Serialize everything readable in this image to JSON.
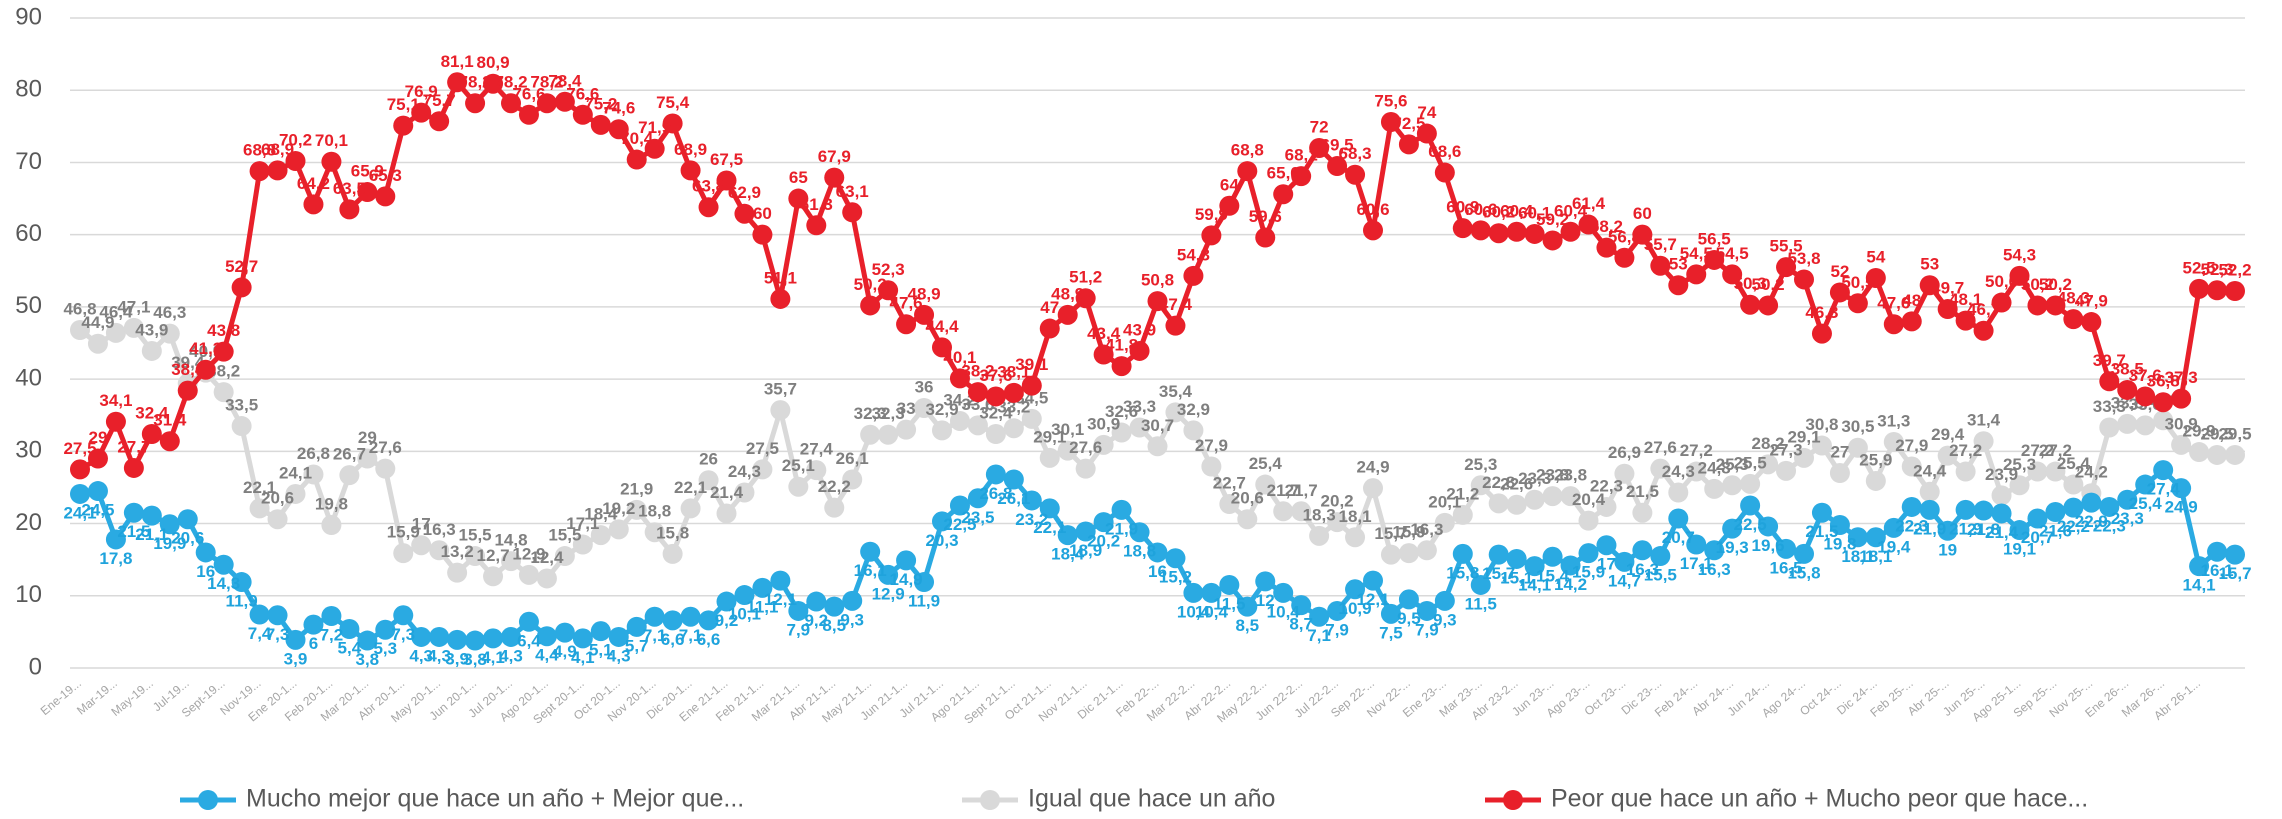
{
  "chart_data": {
    "type": "line",
    "categories": [
      "Ene-19...",
      null,
      "Mar-19...",
      null,
      "May-19...",
      null,
      "Jul-19...",
      null,
      "Sept-19...",
      null,
      "Nov-19...",
      null,
      "Ene 20-1...",
      null,
      "Feb 20-1...",
      null,
      "Mar 20-1...",
      null,
      "Abr 20-1...",
      null,
      "May 20-1...",
      null,
      "Jun 20-1...",
      null,
      "Jul 20-1...",
      null,
      "Ago 20-1...",
      null,
      "Sept 20-1...",
      null,
      "Oct 20-1...",
      null,
      "Nov 20-1...",
      null,
      "Dic 20-1...",
      null,
      "Ene 21-1...",
      null,
      "Feb 21-1...",
      null,
      "Mar 21-1...",
      null,
      "Abr 21-1...",
      null,
      "May 21-1...",
      null,
      "Jun 21-1...",
      null,
      "Jul 21-1...",
      null,
      "Ago 21-1...",
      null,
      "Sept 21-1...",
      null,
      "Oct 21-1...",
      null,
      "Nov 21-1...",
      null,
      "Dic 21-1...",
      null,
      "Feb 22-...",
      null,
      "Mar 22-2...",
      null,
      "Abr 22-2...",
      null,
      "May 22-2...",
      null,
      "Jun 22-2...",
      null,
      "Jul 22-2...",
      null,
      "Sep 22-...",
      null,
      "Nov 22-...",
      null,
      "Ene 23-...",
      null,
      "Mar 23-...",
      null,
      "Abr 23-2...",
      null,
      "Jun 23-...",
      null,
      "Ago 23-...",
      null,
      "Oct 23-...",
      null,
      "Dic 23-...",
      null,
      "Feb 24-...",
      null,
      "Abr 24-...",
      null,
      "Jun 24-...",
      null,
      "Ago 24-...",
      null,
      "Oct 24-...",
      null,
      "Dic 24-...",
      null,
      "Feb 25-...",
      null,
      "Abr 25-...",
      null,
      "Jun 25-...",
      null,
      "Ago 25-1...",
      null,
      "Sep 25-...",
      null,
      "Nov 25-...",
      null,
      "Ene 26-...",
      null,
      "Mar 26-...",
      null,
      "Abr 26-1...",
      null,
      null
    ],
    "series": [
      {
        "name": "Mucho mejor que hace un año + Mejor que...",
        "color": "#2aaae2",
        "label_color": "#1fa3dc",
        "values": [
          24.1,
          24.5,
          17.8,
          21.5,
          21.1,
          19.9,
          20.6,
          16,
          14.3,
          11.9,
          7.4,
          7.3,
          3.9,
          6,
          7.2,
          5.4,
          3.8,
          5.3,
          7.3,
          4.3,
          4.3,
          3.9,
          3.8,
          4.1,
          4.3,
          6.4,
          4.4,
          4.9,
          4.1,
          5.1,
          4.3,
          5.7,
          7.1,
          6.6,
          7.1,
          6.6,
          9.2,
          10.1,
          11.1,
          12.1,
          7.9,
          9.2,
          8.5,
          9.3,
          16.1,
          12.9,
          14.9,
          11.9,
          20.3,
          22.5,
          23.5,
          26.8,
          26.1,
          23.2,
          22.1,
          18.4,
          18.9,
          20.2,
          21.9,
          18.8,
          16,
          15.2,
          10.4,
          10.4,
          11.5,
          8.5,
          12,
          10.4,
          8.7,
          7.1,
          7.9,
          10.9,
          12.1,
          7.5,
          9.5,
          7.9,
          9.3,
          15.8,
          11.5,
          15.7,
          15.1,
          14.1,
          15.4,
          14.2,
          15.9,
          17,
          14.7,
          16.3,
          15.5,
          20.7,
          17.1,
          16.3,
          19.3,
          22.5,
          19.6,
          16.5,
          15.8,
          21.5,
          19.8,
          18.1,
          18.1,
          19.4,
          22.3,
          21.9,
          19,
          21.9,
          21.8,
          21.4,
          19.1,
          20.7,
          21.6,
          22.2,
          22.9,
          22.3,
          23.3,
          25.4,
          27.4,
          24.9,
          14.1,
          16.1,
          15.7
        ],
        "value_labels": [
          "24,1",
          "24,5",
          "17,8",
          "21,5",
          "21,1",
          "19,9",
          "20,6",
          "16",
          "14,3",
          "11,9",
          "7,4",
          "7,3",
          "3,9",
          "6",
          "7,2",
          "5,4",
          "3,8",
          "5,3",
          "7,3",
          "4,3",
          "4,3",
          "3,9",
          "3,8",
          "4,1",
          "4,3",
          "6,4",
          "4,4",
          "4,9",
          "4,1",
          "5,1",
          "4,3",
          "5,7",
          "7,1",
          "6,6",
          "7,1",
          "6,6",
          "9,2",
          "10,1",
          "11,1",
          "12,1",
          "7,9",
          "9,2",
          "8,5",
          "9,3",
          "16,1",
          "12,9",
          "14,9",
          "11,9",
          "20,3",
          "22,5",
          "23,5",
          "26,8",
          "26,1",
          "23,2",
          "22,1",
          "18,4",
          "18,9",
          "20,2",
          "21,9",
          "18,8",
          "16",
          "15,2",
          "10,4",
          "10,4",
          "11,5",
          "8,5",
          "12",
          "10,4",
          "8,7",
          "7,1",
          "7,9",
          "10,9",
          "12,1",
          "7,5",
          "9,5",
          "7,9",
          "9,3",
          "15,8",
          "11,5",
          "15,7",
          "15,1",
          "14,1",
          "15,4",
          "14,2",
          "15,9",
          "17",
          "14,7",
          "16,3",
          "15,5",
          "20,7",
          "17,1",
          "16,3",
          "19,3",
          "22,5",
          "19,6",
          "16,5",
          "15,8",
          "21,5",
          "19,8",
          "18,1",
          "18,1",
          "19,4",
          "22,3",
          "21,9",
          "19",
          "21,9",
          "21,8",
          "21,4",
          "19,1",
          "20,7",
          "21,6",
          "22,2",
          "22,9",
          "22,3",
          "23,3",
          "25,4",
          "27,4",
          "24,9",
          "14,1",
          "16,1",
          "15,7"
        ]
      },
      {
        "name": "Igual que hace un año",
        "color": "#d9d9d9",
        "label_color": "#7f7f7f",
        "values": [
          46.8,
          44.9,
          46.4,
          47.1,
          43.9,
          46.3,
          39.4,
          40.9,
          38.2,
          33.5,
          22.1,
          20.6,
          24.1,
          26.8,
          19.8,
          26.7,
          29,
          27.6,
          15.9,
          17,
          16.3,
          13.2,
          15.5,
          12.7,
          14.8,
          12.9,
          12.4,
          15.5,
          17.1,
          18.4,
          19.2,
          21.9,
          18.8,
          15.8,
          22.1,
          26,
          21.4,
          24.3,
          27.5,
          35.7,
          25.1,
          27.4,
          22.2,
          26.1,
          32.3,
          32.3,
          33,
          36,
          32.9,
          34.2,
          33.6,
          32.4,
          33.2,
          34.5,
          29.1,
          30.1,
          27.6,
          30.9,
          32.6,
          33.3,
          30.7,
          35.4,
          32.9,
          27.9,
          22.7,
          20.6,
          25.4,
          21.7,
          21.7,
          18.3,
          20.2,
          18.1,
          24.9,
          15.7,
          15.9,
          16.3,
          20.1,
          21.2,
          25.3,
          22.8,
          22.6,
          23.3,
          23.8,
          23.8,
          20.4,
          22.3,
          26.9,
          21.5,
          27.6,
          24.3,
          27.2,
          24.8,
          25.3,
          25.5,
          28.2,
          27.3,
          29.1,
          30.8,
          27,
          30.5,
          25.9,
          31.3,
          27.9,
          24.4,
          29.4,
          27.2,
          31.4,
          23.9,
          25.3,
          27.2,
          27.2,
          25.4,
          24.2,
          33.3,
          33.8,
          33.6,
          34.3,
          30.9,
          29.9,
          29.5,
          29.5
        ],
        "value_labels": [
          "46,8",
          "44,9",
          "46,4",
          "47,1",
          "43,9",
          "46,3",
          "39,4",
          "40,9",
          "38,2",
          "33,5",
          "22,1",
          "20,6",
          "24,1",
          "26,8",
          "19,8",
          "26,7",
          "29",
          "27,6",
          "15,9",
          "17",
          "16,3",
          "13,2",
          "15,5",
          "12,7",
          "14,8",
          "12,9",
          "12,4",
          "15,5",
          "17,1",
          "18,4",
          "19,2",
          "21,9",
          "18,8",
          "15,8",
          "22,1",
          "26",
          "21,4",
          "24,3",
          "27,5",
          "35,7",
          "25,1",
          "27,4",
          "22,2",
          "26,1",
          "32,3",
          "32,3",
          "33",
          "36",
          "32,9",
          "34,2",
          "33,6",
          "32,4",
          "33,2",
          "34,5",
          "29,1",
          "30,1",
          "27,6",
          "30,9",
          "32,6",
          "33,3",
          "30,7",
          "35,4",
          "32,9",
          "27,9",
          "22,7",
          "20,6",
          "25,4",
          "21,7",
          "21,7",
          "18,3",
          "20,2",
          "18,1",
          "24,9",
          "15,7",
          "15,9",
          "16,3",
          "20,1",
          "21,2",
          "25,3",
          "22,8",
          "22,6",
          "23,3",
          "23,8",
          "23,8",
          "20,4",
          "22,3",
          "26,9",
          "21,5",
          "27,6",
          "24,3",
          "27,2",
          "24,8",
          "25,3",
          "25,5",
          "28,2",
          "27,3",
          "29,1",
          "30,8",
          "27",
          "30,5",
          "25,9",
          "31,3",
          "27,9",
          "24,4",
          "29,4",
          "27,2",
          "31,4",
          "23,9",
          "25,3",
          "27,2",
          "27,2",
          "25,4",
          "24,2",
          "33,3",
          "33,8",
          "33,6",
          "34,3",
          "30,9",
          "29,9",
          "29,5",
          "29,5"
        ]
      },
      {
        "name": "Peor que hace un año + Mucho peor que hace...",
        "color": "#e8202a",
        "label_color": "#e8202a",
        "values": [
          27.5,
          29,
          34.1,
          27.7,
          32.4,
          31.4,
          38.4,
          41.3,
          43.8,
          52.7,
          68.8,
          68.9,
          70.2,
          64.2,
          70.1,
          63.5,
          65.9,
          65.3,
          75.1,
          76.9,
          75.7,
          81.1,
          78.2,
          80.9,
          78.2,
          76.6,
          78.2,
          78.4,
          76.6,
          75.2,
          74.6,
          70.4,
          71.9,
          75.4,
          68.9,
          63.8,
          67.5,
          62.9,
          60,
          51.1,
          65,
          61.3,
          67.9,
          63.1,
          50.2,
          52.3,
          47.6,
          48.9,
          44.4,
          40.1,
          38.2,
          37.6,
          38.1,
          39.1,
          47,
          48.9,
          51.2,
          43.4,
          41.8,
          43.9,
          50.8,
          47.4,
          54.3,
          59.9,
          64,
          68.8,
          59.6,
          65.6,
          68.1,
          72,
          69.5,
          68.3,
          60.6,
          75.6,
          72.5,
          74,
          68.6,
          60.9,
          60.6,
          60.2,
          60.4,
          60.1,
          59.2,
          60.4,
          61.4,
          58.2,
          56.8,
          60,
          55.7,
          53,
          54.5,
          56.5,
          54.5,
          50.3,
          50.2,
          55.5,
          53.8,
          46.3,
          52,
          50.5,
          54,
          47.6,
          48,
          53,
          49.7,
          48.1,
          46.7,
          50.6,
          54.3,
          50.2,
          50.2,
          48.3,
          47.9,
          39.7,
          38.5,
          37.6,
          36.8,
          37.3,
          52.5,
          52.3,
          52.2
        ],
        "value_labels": [
          "27,5",
          "29",
          "34,1",
          "27,7",
          "32,4",
          "31,4",
          "38,4",
          "41,3",
          "43,8",
          "52,7",
          "68,8",
          "68,9",
          "70,2",
          "64,2",
          "70,1",
          "63,5",
          "65,9",
          "65,3",
          "75,1",
          "76,9",
          "75,7",
          "81,1",
          "78,2",
          "80,9",
          "78,2",
          "76,6",
          "78,2",
          "78,4",
          "76,6",
          "75,2",
          "74,6",
          "70,4",
          "71,9",
          "75,4",
          "68,9",
          "63,8",
          "67,5",
          "62,9",
          "60",
          "51,1",
          "65",
          "61,3",
          "67,9",
          "63,1",
          "50,2",
          "52,3",
          "47,6",
          "48,9",
          "44,4",
          "40,1",
          "38,2",
          "37,6",
          "38,1",
          "39,1",
          "47",
          "48,9",
          "51,2",
          "43,4",
          "41,8",
          "43,9",
          "50,8",
          "47,4",
          "54,3",
          "59,9",
          "64",
          "68,8",
          "59,6",
          "65,6",
          "68,1",
          "72",
          "69,5",
          "68,3",
          "60,6",
          "75,6",
          "72,5",
          "74",
          "68,6",
          "60,9",
          "60,6",
          "60,2",
          "60,4",
          "60,1",
          "59,2",
          "60,4",
          "61,4",
          "58,2",
          "56,8",
          "60",
          "55,7",
          "53",
          "54,5",
          "56,5",
          "54,5",
          "50,3",
          "50,2",
          "55,5",
          "53,8",
          "46,3",
          "52",
          "50,5",
          "54",
          "47,6",
          "48",
          "53",
          "49,7",
          "48,1",
          "46,7",
          "50,6",
          "54,3",
          "50,2",
          "50,2",
          "48,3",
          "47,9",
          "39,7",
          "38,5",
          "37,6",
          "36,8",
          "37,3",
          "52,5",
          "52,3",
          "52,2"
        ]
      }
    ],
    "ylim": [
      0,
      90
    ],
    "yticks": [
      0,
      10,
      20,
      30,
      40,
      50,
      60,
      70,
      80,
      90
    ],
    "grid": true,
    "legend": "bottom"
  }
}
